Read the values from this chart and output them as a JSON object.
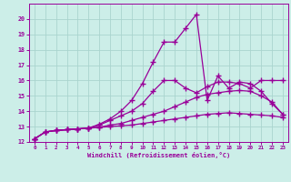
{
  "xlabel": "Windchill (Refroidissement éolien,°C)",
  "bg_color": "#cceee8",
  "grid_color": "#aad4ce",
  "line_color": "#990099",
  "xlim": [
    -0.5,
    23.5
  ],
  "ylim": [
    12,
    21
  ],
  "xticks": [
    0,
    1,
    2,
    3,
    4,
    5,
    6,
    7,
    8,
    9,
    10,
    11,
    12,
    13,
    14,
    15,
    16,
    17,
    18,
    19,
    20,
    21,
    22,
    23
  ],
  "yticks": [
    12,
    13,
    14,
    15,
    16,
    17,
    18,
    19,
    20
  ],
  "curve1_x": [
    0,
    1,
    2,
    3,
    4,
    5,
    6,
    7,
    8,
    9,
    10,
    11,
    12,
    13,
    14,
    15,
    16,
    17,
    18,
    19,
    20,
    21,
    22,
    23
  ],
  "curve1_y": [
    12.2,
    12.65,
    12.75,
    12.8,
    12.85,
    12.9,
    12.95,
    13.0,
    13.05,
    13.1,
    13.2,
    13.3,
    13.4,
    13.5,
    13.6,
    13.7,
    13.8,
    13.85,
    13.9,
    13.85,
    13.8,
    13.75,
    13.7,
    13.6
  ],
  "curve2_x": [
    0,
    1,
    2,
    3,
    4,
    5,
    6,
    7,
    8,
    9,
    10,
    11,
    12,
    13,
    14,
    15,
    16,
    17,
    18,
    19,
    20,
    21,
    22,
    23
  ],
  "curve2_y": [
    12.2,
    12.65,
    12.75,
    12.8,
    12.85,
    12.9,
    12.95,
    13.1,
    13.2,
    13.4,
    13.6,
    13.8,
    14.0,
    14.3,
    14.6,
    14.9,
    15.1,
    15.2,
    15.3,
    15.35,
    15.3,
    15.0,
    14.6,
    13.8
  ],
  "curve3_x": [
    0,
    1,
    2,
    3,
    4,
    5,
    6,
    7,
    8,
    9,
    10,
    11,
    12,
    13,
    14,
    15,
    16,
    17,
    18,
    19,
    20,
    21,
    22,
    23
  ],
  "curve3_y": [
    12.2,
    12.65,
    12.75,
    12.8,
    12.85,
    12.9,
    13.1,
    13.4,
    13.7,
    14.0,
    14.5,
    15.3,
    16.0,
    16.0,
    15.5,
    15.2,
    15.6,
    15.9,
    15.9,
    15.8,
    15.5,
    16.0,
    16.0,
    16.0
  ],
  "curve4_x": [
    0,
    1,
    2,
    3,
    4,
    5,
    6,
    7,
    8,
    9,
    10,
    11,
    12,
    13,
    14,
    15,
    16,
    17,
    18,
    19,
    20,
    21,
    22,
    23
  ],
  "curve4_y": [
    12.2,
    12.65,
    12.75,
    12.8,
    12.85,
    12.9,
    13.15,
    13.5,
    14.0,
    14.7,
    15.8,
    17.2,
    18.5,
    18.5,
    19.4,
    20.3,
    14.7,
    16.3,
    15.5,
    15.9,
    15.8,
    15.3,
    14.5,
    13.8
  ],
  "marker": "+",
  "markersize": 4,
  "linewidth": 0.9
}
